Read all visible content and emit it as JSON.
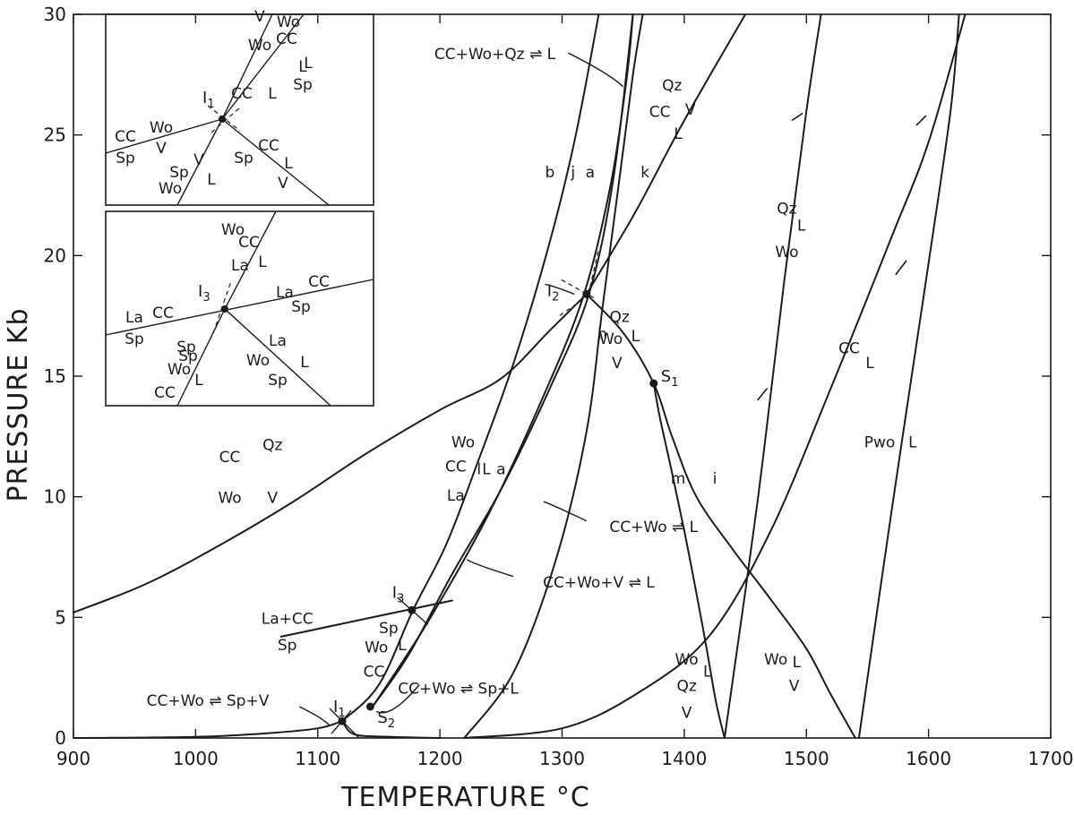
{
  "chart_data": {
    "type": "line",
    "xlabel": "TEMPERATURE °C",
    "ylabel": "PRESSURE Kb",
    "xlim": [
      900,
      1700
    ],
    "ylim": [
      0,
      30
    ],
    "x_ticks": [
      "900",
      "1000",
      "1100",
      "1200",
      "1300",
      "1400",
      "1500",
      "1600",
      "1700"
    ],
    "y_ticks": [
      "0",
      "5",
      "10",
      "15",
      "20",
      "25",
      "30"
    ],
    "series": [
      {
        "id": "ccqz",
        "points": [
          [
            900,
            5.2
          ],
          [
            960,
            6.4
          ],
          [
            1020,
            8.0
          ],
          [
            1080,
            9.8
          ],
          [
            1140,
            11.8
          ],
          [
            1200,
            13.6
          ],
          [
            1250,
            14.9
          ],
          [
            1290,
            16.9
          ],
          [
            1320,
            18.4
          ]
        ]
      },
      {
        "id": "k",
        "points": [
          [
            1320,
            18.4
          ],
          [
            1360,
            21.8
          ],
          [
            1400,
            25.6
          ],
          [
            1450,
            30
          ]
        ]
      },
      {
        "id": "hi",
        "points": [
          [
            1320,
            18.4
          ],
          [
            1350,
            16.8
          ],
          [
            1375,
            14.7
          ],
          [
            1390,
            12.5
          ],
          [
            1410,
            10.0
          ],
          [
            1440,
            7.8
          ],
          [
            1470,
            5.8
          ],
          [
            1500,
            3.7
          ],
          [
            1520,
            1.8
          ],
          [
            1540,
            0
          ]
        ]
      },
      {
        "id": "m",
        "points": [
          [
            1375,
            14.7
          ],
          [
            1380,
            13.3
          ],
          [
            1390,
            11.0
          ],
          [
            1400,
            8.6
          ],
          [
            1410,
            6.0
          ],
          [
            1418,
            3.8
          ],
          [
            1426,
            1.5
          ],
          [
            1433,
            0
          ]
        ]
      },
      {
        "id": "b",
        "points": [
          [
            1120,
            0.7
          ],
          [
            1150,
            2.2
          ],
          [
            1178,
            5.3
          ],
          [
            1205,
            8.0
          ],
          [
            1230,
            11.3
          ],
          [
            1260,
            15.5
          ],
          [
            1288,
            20.2
          ],
          [
            1310,
            24.7
          ],
          [
            1330,
            30
          ]
        ]
      },
      {
        "id": "j",
        "points": [
          [
            1145,
            1.3
          ],
          [
            1175,
            3.5
          ],
          [
            1210,
            6.8
          ],
          [
            1250,
            10.3
          ],
          [
            1290,
            14.5
          ],
          [
            1322,
            18.4
          ],
          [
            1342,
            23.2
          ],
          [
            1358,
            30
          ]
        ]
      },
      {
        "id": "la",
        "points": [
          [
            1145,
            1.3
          ],
          [
            1190,
            4.8
          ],
          [
            1240,
            9.3
          ],
          [
            1285,
            14.2
          ],
          [
            1318,
            18.4
          ],
          [
            1340,
            23.0
          ],
          [
            1353,
            27.4
          ],
          [
            1358,
            30
          ]
        ]
      },
      {
        "id": "a",
        "points": [
          [
            1220,
            0
          ],
          [
            1260,
            2.7
          ],
          [
            1295,
            7.4
          ],
          [
            1320,
            12.7
          ],
          [
            1333,
            17.8
          ],
          [
            1347,
            23.2
          ],
          [
            1358,
            27.5
          ],
          [
            1366,
            30
          ]
        ]
      },
      {
        "id": "ccwospv",
        "points": [
          [
            900,
            0
          ],
          [
            1000,
            0.05
          ],
          [
            1060,
            0.2
          ],
          [
            1100,
            0.4
          ],
          [
            1120,
            0.7
          ]
        ]
      },
      {
        "id": "spl",
        "points": [
          [
            1120,
            0.7
          ],
          [
            1130,
            0.15
          ],
          [
            1160,
            0.05
          ],
          [
            1200,
            0
          ]
        ]
      },
      {
        "id": "wide",
        "points": [
          [
            1220,
            0
          ],
          [
            1300,
            0.4
          ],
          [
            1360,
            1.8
          ],
          [
            1420,
            4.2
          ],
          [
            1470,
            8.5
          ],
          [
            1520,
            14.5
          ],
          [
            1570,
            20.8
          ],
          [
            1600,
            24.7
          ],
          [
            1630,
            30
          ]
        ]
      },
      {
        "id": "qzl",
        "points": [
          [
            1433,
            0
          ],
          [
            1460,
            9.8
          ],
          [
            1482,
            19.0
          ],
          [
            1500,
            26.0
          ],
          [
            1512,
            30
          ]
        ]
      },
      {
        "id": "pwo",
        "points": [
          [
            1543,
            0
          ],
          [
            1570,
            9.5
          ],
          [
            1598,
            19.0
          ],
          [
            1618,
            26.0
          ],
          [
            1625,
            30
          ]
        ]
      },
      {
        "id": "laccsp",
        "points": [
          [
            1070,
            4.2
          ],
          [
            1210,
            5.7
          ]
        ]
      }
    ],
    "points": [
      {
        "label": "I1",
        "x": 1120,
        "y": 0.7
      },
      {
        "label": "S2",
        "x": 1143,
        "y": 1.3
      },
      {
        "label": "I3",
        "x": 1177,
        "y": 5.3
      },
      {
        "label": "I2",
        "x": 1320,
        "y": 18.4
      },
      {
        "label": "S1",
        "x": 1375,
        "y": 14.7
      }
    ],
    "curve_labels": [
      "b",
      "j",
      "a",
      "k",
      "h",
      "l",
      "a",
      "m",
      "i"
    ],
    "field_labels": [
      "CC",
      "Qz",
      "Wo",
      "V",
      "L",
      "La",
      "Sp",
      "Pwo"
    ],
    "reaction_labels": [
      "CC+Wo+Qz ⇌ L",
      "CC+Wo ⇌ L",
      "CC+Wo+V ⇌ L",
      "CC+Wo ⇌ Sp+V",
      "CC+Wo ⇌ Sp+L",
      "La+CC",
      "Sp"
    ],
    "inset_labels": [
      "I1",
      "I3",
      "CC",
      "Wo",
      "V",
      "L",
      "Sp",
      "La"
    ]
  }
}
